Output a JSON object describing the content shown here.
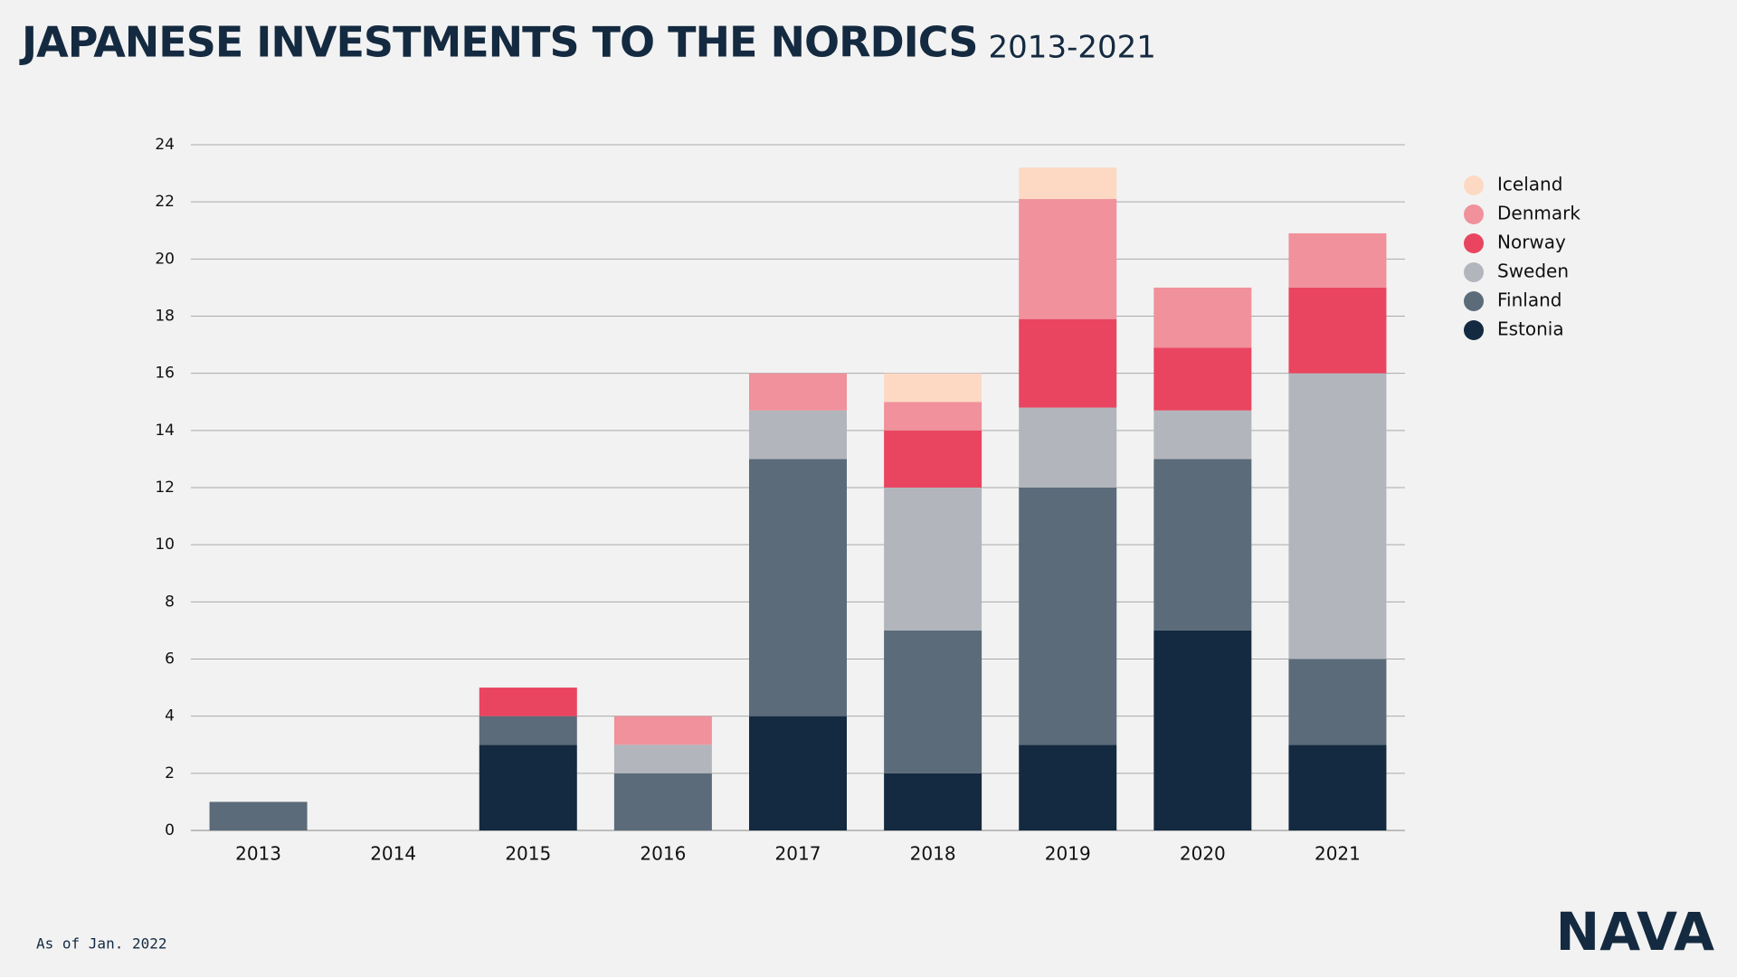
{
  "chart_data": {
    "type": "bar",
    "stacked": true,
    "title": "JAPANESE INVESTMENTS  TO THE NORDICS",
    "subtitle": "2013-2021",
    "footnote": "As of Jan. 2022",
    "logo": "NAVA",
    "categories": [
      "2013",
      "2014",
      "2015",
      "2016",
      "2017",
      "2018",
      "2019",
      "2020",
      "2021"
    ],
    "series": [
      {
        "name": "Estonia",
        "color": "#142a40",
        "values": [
          0,
          0,
          3,
          0,
          4,
          2,
          3,
          7,
          3
        ]
      },
      {
        "name": "Finland",
        "color": "#5b6b7a",
        "values": [
          1,
          0,
          1,
          2,
          9,
          5,
          9,
          6,
          3
        ]
      },
      {
        "name": "Sweden",
        "color": "#b2b6bc",
        "values": [
          0,
          0,
          0,
          1,
          1.7,
          5,
          2.8,
          1.7,
          10
        ]
      },
      {
        "name": "Norway",
        "color": "#e94560",
        "values": [
          0,
          0,
          1,
          0,
          0,
          2,
          3.1,
          2.2,
          3
        ]
      },
      {
        "name": "Denmark",
        "color": "#f0919b",
        "values": [
          0,
          0,
          0,
          1,
          1.3,
          1,
          4.2,
          2.1,
          1.9
        ]
      },
      {
        "name": "Iceland",
        "color": "#fdd9c4",
        "values": [
          0,
          0,
          0,
          0,
          0,
          1,
          1.1,
          0,
          0
        ]
      }
    ],
    "ylim": [
      0,
      24
    ],
    "yticks": [
      0,
      2,
      4,
      6,
      8,
      10,
      12,
      14,
      16,
      18,
      20,
      22,
      24
    ],
    "grid": true,
    "legend": "right"
  }
}
